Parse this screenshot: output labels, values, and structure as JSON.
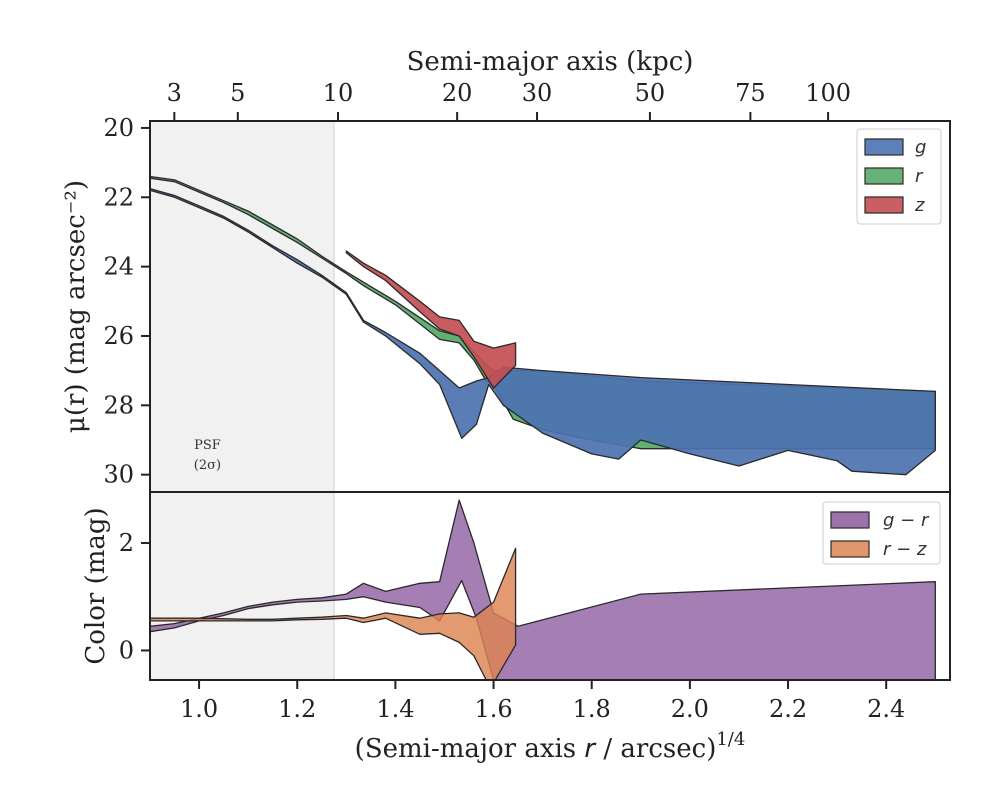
{
  "chart_data": [
    {
      "type": "area",
      "panel": "surface-brightness",
      "ylabel": "μ(r) (mag arcsec⁻²)",
      "top_xlabel": "Semi-major axis (kpc)",
      "top_tick_labels": [
        "3",
        "5",
        "10",
        "20",
        "30",
        "50",
        "75",
        "100"
      ],
      "top_ticks_kpc": [
        3,
        5,
        10,
        20,
        30,
        50,
        75,
        100
      ],
      "xlim": [
        0.9,
        2.53
      ],
      "ylim": [
        30.5,
        19.8
      ],
      "y_inverted": true,
      "y_tick_labels": [
        "20",
        "22",
        "24",
        "26",
        "28",
        "30"
      ],
      "y_ticks": [
        20,
        22,
        24,
        26,
        28,
        30
      ],
      "legend": {
        "position": "top-right",
        "entries": [
          "g",
          "r",
          "z"
        ]
      },
      "shaded_region": {
        "x_range": [
          0.9,
          1.275
        ],
        "label_line1": "PSF",
        "label_line2": "(2σ)"
      },
      "series": [
        {
          "name": "g",
          "color": "#4c72b0",
          "upper": [
            [
              0.9,
              21.75
            ],
            [
              0.95,
              21.95
            ],
            [
              1.0,
              22.25
            ],
            [
              1.05,
              22.55
            ],
            [
              1.1,
              22.95
            ],
            [
              1.15,
              23.4
            ],
            [
              1.2,
              23.8
            ],
            [
              1.25,
              24.25
            ],
            [
              1.3,
              24.75
            ],
            [
              1.335,
              25.55
            ],
            [
              1.38,
              25.9
            ],
            [
              1.45,
              26.5
            ],
            [
              1.49,
              27.0
            ],
            [
              1.53,
              27.5
            ],
            [
              1.565,
              27.3
            ],
            [
              1.59,
              27.2
            ],
            [
              1.62,
              26.9
            ],
            [
              1.7,
              27.0
            ],
            [
              1.9,
              27.2
            ],
            [
              2.2,
              27.4
            ],
            [
              2.5,
              27.6
            ]
          ],
          "lower": [
            [
              0.9,
              21.8
            ],
            [
              0.95,
              22.0
            ],
            [
              1.0,
              22.3
            ],
            [
              1.05,
              22.6
            ],
            [
              1.1,
              23.0
            ],
            [
              1.15,
              23.45
            ],
            [
              1.2,
              23.9
            ],
            [
              1.25,
              24.3
            ],
            [
              1.3,
              24.8
            ],
            [
              1.335,
              25.6
            ],
            [
              1.38,
              26.0
            ],
            [
              1.45,
              26.8
            ],
            [
              1.49,
              27.4
            ],
            [
              1.535,
              28.95
            ],
            [
              1.565,
              28.55
            ],
            [
              1.59,
              27.4
            ],
            [
              1.62,
              28.0
            ],
            [
              1.7,
              28.8
            ],
            [
              1.8,
              29.4
            ],
            [
              1.855,
              29.55
            ],
            [
              1.9,
              29.0
            ],
            [
              2.0,
              29.4
            ],
            [
              2.1,
              29.75
            ],
            [
              2.2,
              29.3
            ],
            [
              2.3,
              29.6
            ],
            [
              2.33,
              29.9
            ],
            [
              2.44,
              30.0
            ],
            [
              2.5,
              29.3
            ]
          ]
        },
        {
          "name": "r",
          "color": "#55a868",
          "upper": [
            [
              0.9,
              21.4
            ],
            [
              0.95,
              21.5
            ],
            [
              1.0,
              21.8
            ],
            [
              1.05,
              22.1
            ],
            [
              1.1,
              22.4
            ],
            [
              1.15,
              22.8
            ],
            [
              1.2,
              23.2
            ],
            [
              1.25,
              23.7
            ],
            [
              1.3,
              24.15
            ],
            [
              1.335,
              24.45
            ],
            [
              1.4,
              25.0
            ],
            [
              1.49,
              25.85
            ],
            [
              1.53,
              26.0
            ],
            [
              1.56,
              26.45
            ],
            [
              1.59,
              26.9
            ],
            [
              1.6,
              27.0
            ],
            [
              1.7,
              27.0
            ],
            [
              1.9,
              27.3
            ],
            [
              2.2,
              27.45
            ],
            [
              2.5,
              27.6
            ]
          ],
          "lower": [
            [
              0.9,
              21.45
            ],
            [
              0.95,
              21.55
            ],
            [
              1.0,
              21.85
            ],
            [
              1.05,
              22.15
            ],
            [
              1.1,
              22.5
            ],
            [
              1.15,
              22.9
            ],
            [
              1.2,
              23.3
            ],
            [
              1.25,
              23.75
            ],
            [
              1.3,
              24.2
            ],
            [
              1.335,
              24.55
            ],
            [
              1.4,
              25.1
            ],
            [
              1.49,
              26.1
            ],
            [
              1.53,
              26.2
            ],
            [
              1.56,
              26.7
            ],
            [
              1.585,
              27.3
            ],
            [
              1.6,
              27.4
            ],
            [
              1.64,
              28.4
            ],
            [
              1.7,
              28.7
            ],
            [
              1.8,
              29.0
            ],
            [
              1.9,
              29.25
            ],
            [
              2.0,
              29.25
            ],
            [
              2.5,
              29.25
            ]
          ]
        },
        {
          "name": "z",
          "color": "#c44e52",
          "upper": [
            [
              1.3,
              23.55
            ],
            [
              1.335,
              23.9
            ],
            [
              1.38,
              24.25
            ],
            [
              1.45,
              25.0
            ],
            [
              1.49,
              25.45
            ],
            [
              1.53,
              25.55
            ],
            [
              1.56,
              26.15
            ],
            [
              1.6,
              26.35
            ],
            [
              1.645,
              26.2
            ]
          ],
          "lower": [
            [
              1.3,
              23.6
            ],
            [
              1.335,
              24.0
            ],
            [
              1.38,
              24.4
            ],
            [
              1.45,
              25.3
            ],
            [
              1.49,
              25.8
            ],
            [
              1.53,
              26.0
            ],
            [
              1.56,
              26.6
            ],
            [
              1.6,
              27.5
            ],
            [
              1.645,
              26.85
            ]
          ]
        }
      ]
    },
    {
      "type": "area",
      "panel": "color",
      "xlabel": "(Semi-major axis r / arcsec)^1/4",
      "xlabel_main": "(Semi-major axis ",
      "xlabel_var": "r",
      "xlabel_rest": " / arcsec)",
      "xlabel_exp": "1/4",
      "ylabel": "Color (mag)",
      "xlim": [
        0.9,
        2.53
      ],
      "ylim": [
        -0.55,
        2.95
      ],
      "x_ticks": [
        1.0,
        1.2,
        1.4,
        1.6,
        1.8,
        2.0,
        2.2,
        2.4
      ],
      "x_tick_labels": [
        "1.0",
        "1.2",
        "1.4",
        "1.6",
        "1.8",
        "2.0",
        "2.2",
        "2.4"
      ],
      "y_ticks": [
        0,
        2
      ],
      "y_tick_labels": [
        "0",
        "2"
      ],
      "legend": {
        "position": "top-right",
        "entries": [
          "g − r",
          "r − z"
        ]
      },
      "series": [
        {
          "name": "g − r",
          "color": "#8c5a9e",
          "upper": [
            [
              0.9,
              0.45
            ],
            [
              0.95,
              0.5
            ],
            [
              1.0,
              0.6
            ],
            [
              1.05,
              0.7
            ],
            [
              1.1,
              0.82
            ],
            [
              1.15,
              0.9
            ],
            [
              1.2,
              0.95
            ],
            [
              1.25,
              0.98
            ],
            [
              1.3,
              1.05
            ],
            [
              1.335,
              1.25
            ],
            [
              1.38,
              1.1
            ],
            [
              1.45,
              1.25
            ],
            [
              1.49,
              1.28
            ],
            [
              1.53,
              2.8
            ],
            [
              1.56,
              2.0
            ],
            [
              1.6,
              0.7
            ],
            [
              1.65,
              0.45
            ],
            [
              1.9,
              1.05
            ],
            [
              2.5,
              1.28
            ]
          ],
          "lower": [
            [
              0.9,
              0.35
            ],
            [
              0.95,
              0.42
            ],
            [
              1.0,
              0.55
            ],
            [
              1.05,
              0.65
            ],
            [
              1.1,
              0.78
            ],
            [
              1.15,
              0.85
            ],
            [
              1.2,
              0.9
            ],
            [
              1.25,
              0.92
            ],
            [
              1.3,
              0.95
            ],
            [
              1.335,
              1.0
            ],
            [
              1.38,
              0.9
            ],
            [
              1.45,
              0.8
            ],
            [
              1.49,
              0.55
            ],
            [
              1.535,
              1.3
            ],
            [
              1.565,
              0.6
            ],
            [
              1.6,
              -0.55
            ],
            [
              1.9,
              -0.55
            ],
            [
              2.5,
              -0.55
            ]
          ]
        },
        {
          "name": "r − z",
          "color": "#dd8452",
          "upper": [
            [
              0.9,
              0.6
            ],
            [
              1.0,
              0.6
            ],
            [
              1.1,
              0.58
            ],
            [
              1.15,
              0.58
            ],
            [
              1.2,
              0.6
            ],
            [
              1.25,
              0.62
            ],
            [
              1.3,
              0.65
            ],
            [
              1.335,
              0.6
            ],
            [
              1.38,
              0.7
            ],
            [
              1.45,
              0.6
            ],
            [
              1.49,
              0.68
            ],
            [
              1.53,
              0.7
            ],
            [
              1.56,
              0.62
            ],
            [
              1.6,
              0.9
            ],
            [
              1.645,
              1.9
            ]
          ],
          "lower": [
            [
              0.9,
              0.55
            ],
            [
              1.0,
              0.55
            ],
            [
              1.1,
              0.55
            ],
            [
              1.15,
              0.55
            ],
            [
              1.2,
              0.57
            ],
            [
              1.25,
              0.58
            ],
            [
              1.3,
              0.6
            ],
            [
              1.335,
              0.52
            ],
            [
              1.38,
              0.6
            ],
            [
              1.45,
              0.3
            ],
            [
              1.49,
              0.32
            ],
            [
              1.53,
              0.15
            ],
            [
              1.56,
              -0.1
            ],
            [
              1.585,
              -0.55
            ],
            [
              1.6,
              -0.6
            ],
            [
              1.645,
              0.1
            ]
          ]
        }
      ]
    }
  ]
}
